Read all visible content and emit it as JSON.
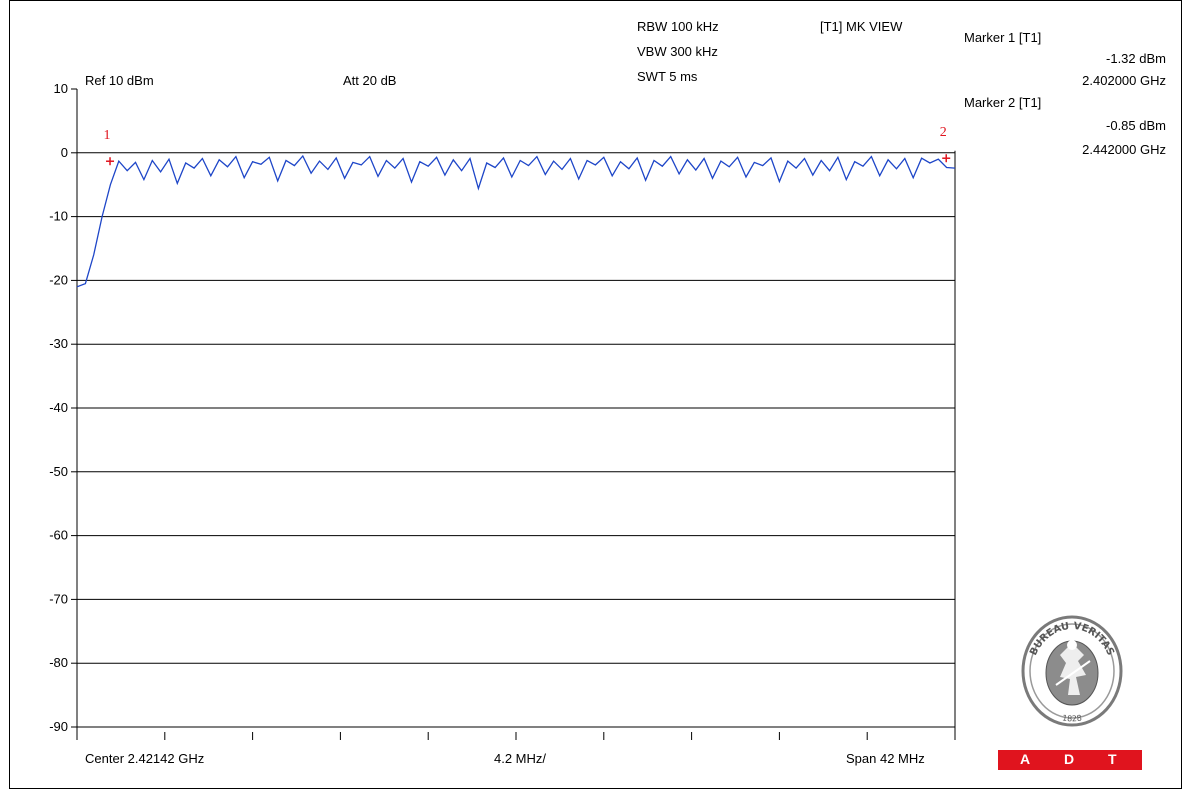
{
  "header": {
    "ref": "Ref 10 dBm",
    "att": "Att  20 dB",
    "rbw": "RBW 100 kHz",
    "vbw": "VBW 300 kHz",
    "swt": "SWT 5 ms",
    "mode": "[T1] MK VIEW"
  },
  "markers": [
    {
      "label": "Marker 1 [T1]",
      "level": "-1.32 dBm",
      "freq": "2.402000 GHz",
      "id": "1",
      "x_mhz": 2.402,
      "y": -1.32
    },
    {
      "label": "Marker 2 [T1]",
      "level": "-0.85 dBm",
      "freq": "2.442000 GHz",
      "id": "2",
      "x_mhz": 2.442,
      "y": -0.85
    }
  ],
  "footer": {
    "center": "Center 2.42142 GHz",
    "div": "4.2 MHz/",
    "span": "Span 42 MHz"
  },
  "logo": {
    "brand": "BUREAU VERITAS",
    "year": "1828",
    "badge": "A D T"
  },
  "colors": {
    "trace": "#1e46c8",
    "marker": "#e0141e",
    "grid": "#000000",
    "badge": "#e0141e"
  },
  "chart_data": {
    "type": "line",
    "title": "",
    "xlabel": "",
    "ylabel": "",
    "x_center_ghz": 2.42142,
    "x_span_mhz": 42,
    "x_div_mhz": 4.2,
    "ylim": [
      -90,
      10
    ],
    "yticks": [
      "10",
      "0",
      "-10",
      "-20",
      "-30",
      "-40",
      "-50",
      "-60",
      "-70",
      "-80",
      "-90"
    ],
    "ytick_values": [
      10,
      0,
      -10,
      -20,
      -30,
      -40,
      -50,
      -60,
      -70,
      -80,
      -90
    ],
    "xticks_count": 11,
    "series": [
      {
        "x_offset_mhz": [
          0,
          0.4,
          0.8,
          1.2,
          1.6,
          2.0,
          2.4,
          2.8,
          3.2,
          3.6,
          4.0,
          4.4,
          4.8,
          5.2,
          5.6,
          6.0,
          6.4,
          6.8,
          7.2,
          7.6,
          8.0,
          8.4,
          8.8,
          9.2,
          9.6,
          10.0,
          10.4,
          10.8,
          11.2,
          11.6,
          12.0,
          12.4,
          12.8,
          13.2,
          13.6,
          14.0,
          14.4,
          14.8,
          15.2,
          15.6,
          16.0,
          16.4,
          16.8,
          17.2,
          17.6,
          18.0,
          18.4,
          18.8,
          19.2,
          19.6,
          20.0,
          20.4,
          20.8,
          21.2,
          21.6,
          22.0,
          22.4,
          22.8,
          23.2,
          23.6,
          24.0,
          24.4,
          24.8,
          25.2,
          25.6,
          26.0,
          26.4,
          26.8,
          27.2,
          27.6,
          28.0,
          28.4,
          28.8,
          29.2,
          29.6,
          30.0,
          30.4,
          30.8,
          31.2,
          31.6,
          32.0,
          32.4,
          32.8,
          33.2,
          33.6,
          34.0,
          34.4,
          34.8,
          35.2,
          35.6,
          36.0,
          36.4,
          36.8,
          37.2,
          37.6,
          38.0,
          38.4,
          38.8,
          39.2,
          39.6,
          40.0,
          40.4,
          40.8,
          41.2,
          41.6,
          42.0
        ],
        "dbm": [
          -21,
          -20.5,
          -16,
          -10,
          -5,
          -1.3,
          -2.8,
          -1.5,
          -4.2,
          -1.2,
          -3.0,
          -1.0,
          -4.8,
          -1.6,
          -2.4,
          -0.9,
          -3.6,
          -1.1,
          -2.2,
          -0.6,
          -3.9,
          -1.4,
          -1.8,
          -0.7,
          -4.4,
          -1.2,
          -2.0,
          -0.5,
          -3.2,
          -1.3,
          -2.6,
          -0.8,
          -4.0,
          -1.5,
          -1.9,
          -0.6,
          -3.7,
          -1.2,
          -2.4,
          -0.9,
          -4.6,
          -1.4,
          -2.1,
          -0.7,
          -3.5,
          -1.1,
          -2.8,
          -0.9,
          -5.6,
          -1.6,
          -2.3,
          -0.8,
          -3.8,
          -1.2,
          -2.0,
          -0.6,
          -3.4,
          -1.3,
          -2.6,
          -0.9,
          -4.1,
          -1.2,
          -1.9,
          -0.7,
          -3.6,
          -1.4,
          -2.5,
          -0.8,
          -4.3,
          -1.2,
          -2.1,
          -0.6,
          -3.3,
          -1.1,
          -2.7,
          -0.9,
          -4.0,
          -1.3,
          -2.2,
          -0.7,
          -3.8,
          -1.5,
          -2.0,
          -0.8,
          -4.5,
          -1.3,
          -2.4,
          -0.9,
          -3.5,
          -1.2,
          -2.8,
          -0.7,
          -4.2,
          -1.4,
          -2.1,
          -0.6,
          -3.6,
          -1.1,
          -2.5,
          -0.9,
          -3.9,
          -0.85,
          -1.6,
          -1.0,
          -2.3,
          -2.4
        ]
      }
    ]
  }
}
